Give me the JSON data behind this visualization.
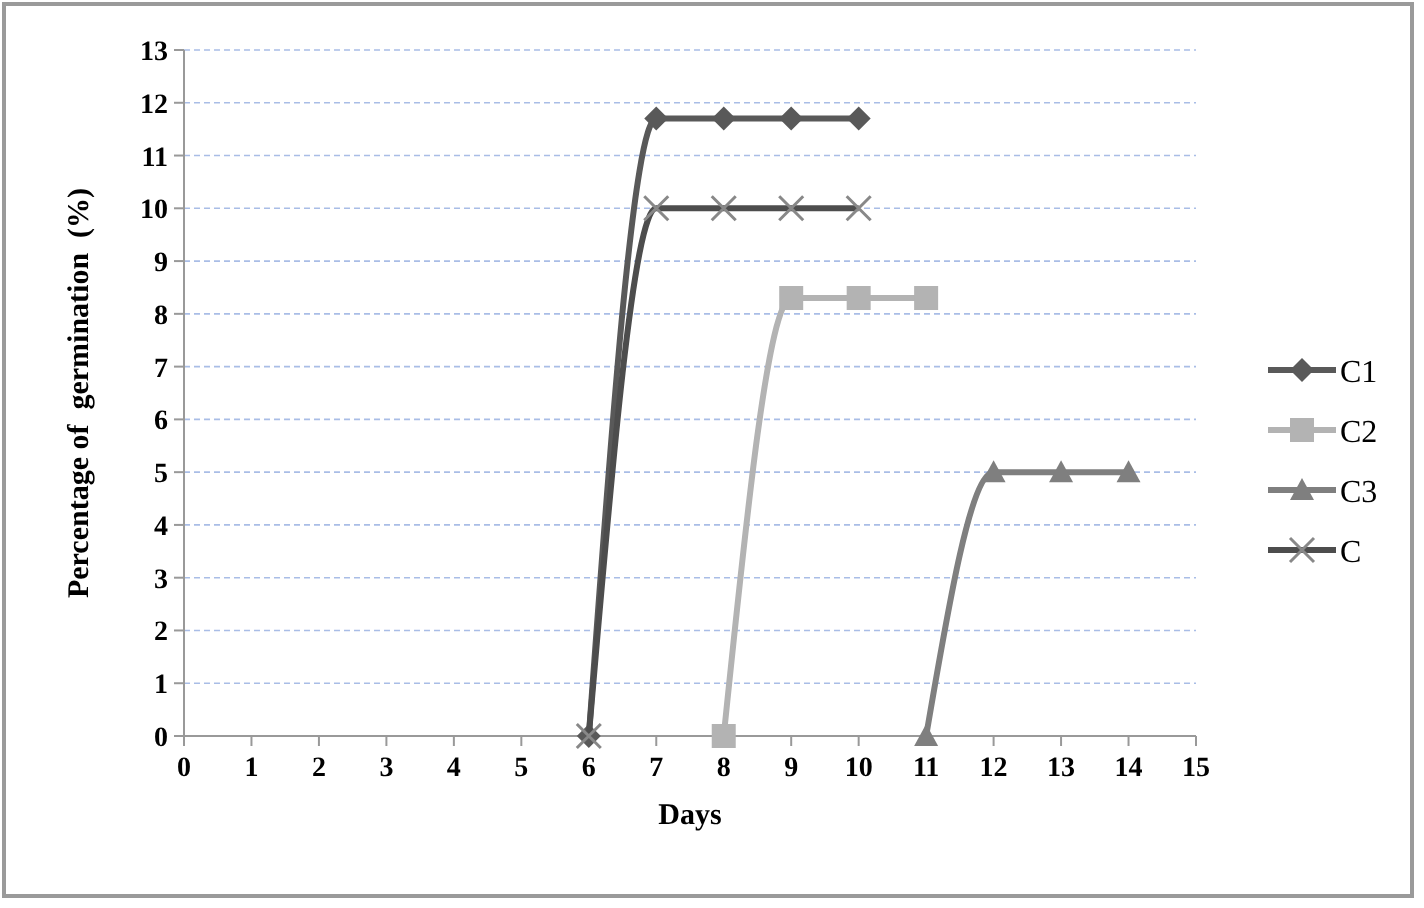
{
  "chart_data": {
    "type": "line",
    "xlabel": "Days",
    "ylabel": "Percentage of  germination  (%)",
    "xlim": [
      0,
      15
    ],
    "xticks": [
      0,
      1,
      2,
      3,
      4,
      5,
      6,
      7,
      8,
      9,
      10,
      11,
      12,
      13,
      14,
      15
    ],
    "ylim": [
      0,
      13
    ],
    "yticks": [
      0,
      1,
      2,
      3,
      4,
      5,
      6,
      7,
      8,
      9,
      10,
      11,
      12,
      13
    ],
    "grid": "y",
    "legend": "right",
    "series": [
      {
        "name": "C1",
        "color": "#595959",
        "marker": "diamond",
        "x": [
          6,
          7,
          8,
          9,
          10
        ],
        "values": [
          0,
          11.7,
          11.7,
          11.7,
          11.7
        ]
      },
      {
        "name": "C2",
        "color": "#b3b3b3",
        "marker": "square",
        "x": [
          8,
          9,
          10,
          11
        ],
        "values": [
          0,
          8.3,
          8.3,
          8.3
        ]
      },
      {
        "name": "C3",
        "color": "#7f7f7f",
        "marker": "triangle",
        "x": [
          11,
          12,
          13,
          14
        ],
        "values": [
          0,
          5,
          5,
          5
        ]
      },
      {
        "name": "C",
        "color": "#4d4d4d",
        "marker": "cross",
        "x": [
          6,
          7,
          8,
          9,
          10
        ],
        "values": [
          0,
          10,
          10,
          10,
          10
        ]
      }
    ]
  }
}
